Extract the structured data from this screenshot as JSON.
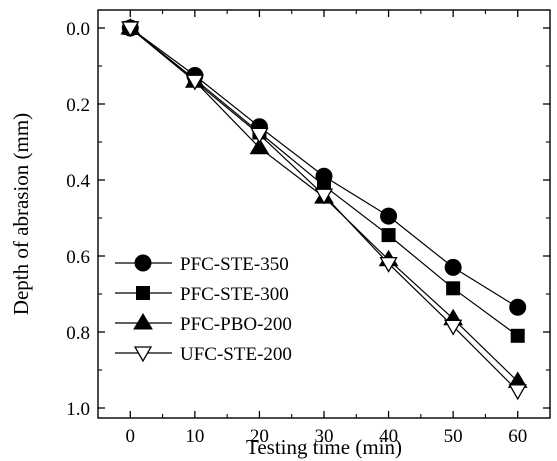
{
  "chart_data": {
    "type": "line",
    "xlabel": "Testing time  (min)",
    "ylabel": "Depth of abrasion  (mm)",
    "x": [
      0,
      10,
      20,
      30,
      40,
      50,
      60
    ],
    "xlim": [
      -5,
      65
    ],
    "ylim": [
      1.0,
      0.0
    ],
    "y_inverted": true,
    "x_ticks": [
      "0",
      "10",
      "20",
      "30",
      "40",
      "50",
      "60"
    ],
    "y_ticks": [
      "0.0",
      "0.2",
      "0.4",
      "0.6",
      "0.8",
      "1.0"
    ],
    "legend_position": "bottom-left",
    "series": [
      {
        "name": "PFC-STE-350",
        "marker": "circle-filled",
        "values": [
          0.0,
          0.125,
          0.26,
          0.39,
          0.495,
          0.63,
          0.735
        ]
      },
      {
        "name": "PFC-STE-300",
        "marker": "square-filled",
        "values": [
          0.0,
          0.135,
          0.275,
          0.415,
          0.545,
          0.685,
          0.81
        ]
      },
      {
        "name": "PFC-PBO-200",
        "marker": "triangle-up-filled",
        "values": [
          0.0,
          0.14,
          0.315,
          0.445,
          0.61,
          0.765,
          0.93
        ]
      },
      {
        "name": "UFC-STE-200",
        "marker": "triangle-down-open",
        "values": [
          0.0,
          0.14,
          0.28,
          0.44,
          0.62,
          0.785,
          0.955
        ]
      }
    ]
  }
}
